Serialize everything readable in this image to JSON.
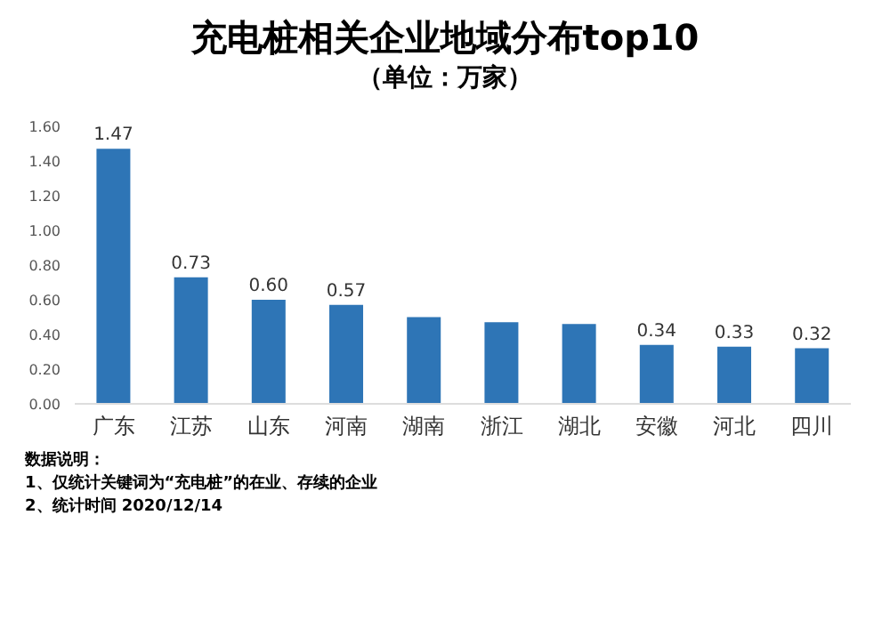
{
  "chart_data": {
    "type": "bar",
    "title": "充电桩相关企业地域分布top10",
    "subtitle": "（单位：万家）",
    "categories": [
      "广东",
      "江苏",
      "山东",
      "河南",
      "湖南",
      "浙江",
      "湖北",
      "安徽",
      "河北",
      "四川"
    ],
    "values": [
      1.47,
      0.73,
      0.6,
      0.57,
      0.5,
      0.47,
      0.46,
      0.34,
      0.33,
      0.32
    ],
    "value_labels": [
      "1.47",
      "0.73",
      "0.60",
      "0.57",
      null,
      null,
      null,
      "0.34",
      "0.33",
      "0.32"
    ],
    "color": "#2e75b6",
    "ylim": [
      0,
      1.6
    ],
    "yticks": [
      {
        "value": 0,
        "label": "0.00"
      },
      {
        "value": 0.2,
        "label": "0.20"
      },
      {
        "value": 0.4,
        "label": "0.40"
      },
      {
        "value": 0.6,
        "label": "0.60"
      },
      {
        "value": 0.8,
        "label": "0.80"
      },
      {
        "value": 1.0,
        "label": "1.00"
      },
      {
        "value": 1.2,
        "label": "1.20"
      },
      {
        "value": 1.4,
        "label": "1.40"
      },
      {
        "value": 1.6,
        "label": "1.60"
      }
    ],
    "grid": false,
    "annotations": [
      "数据说明：",
      "1、仅统计关键词为“充电桩”的在业、存续的企业",
      "2、统计时间 2020/12/14"
    ]
  }
}
